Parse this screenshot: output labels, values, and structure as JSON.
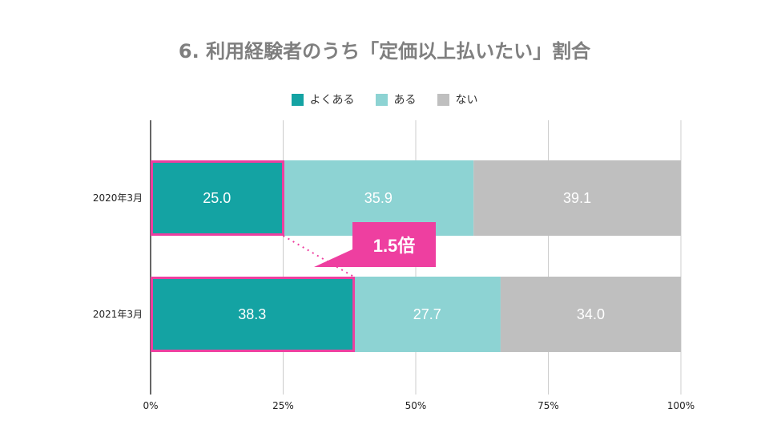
{
  "title": "6. 利用経験者のうち「定価以上払いたい」割合",
  "colors": {
    "yokuaru": "#14a3a3",
    "aru": "#8dd3d3",
    "nai": "#bfbfbf",
    "highlight": "#ee3fa0",
    "grid": "#cccccc",
    "axis": "#000000"
  },
  "callout": {
    "label": "1.5倍"
  },
  "chart_data": {
    "type": "bar",
    "orientation": "horizontal",
    "stacked": true,
    "title": "6. 利用経験者のうち「定価以上払いたい」割合",
    "categories": [
      "2020年3月",
      "2021年3月"
    ],
    "series": [
      {
        "name": "よくある",
        "values": [
          25.0,
          38.3
        ],
        "color": "#14a3a3"
      },
      {
        "name": "ある",
        "values": [
          35.9,
          27.7
        ],
        "color": "#8dd3d3"
      },
      {
        "name": "ない",
        "values": [
          39.1,
          34.0
        ],
        "color": "#bfbfbf"
      }
    ],
    "xlim": [
      0,
      100
    ],
    "xticks": [
      0,
      25,
      50,
      75,
      100
    ],
    "xtick_labels": [
      "0%",
      "25%",
      "50%",
      "75%",
      "100%"
    ],
    "legend": "top-center",
    "grid": true
  }
}
